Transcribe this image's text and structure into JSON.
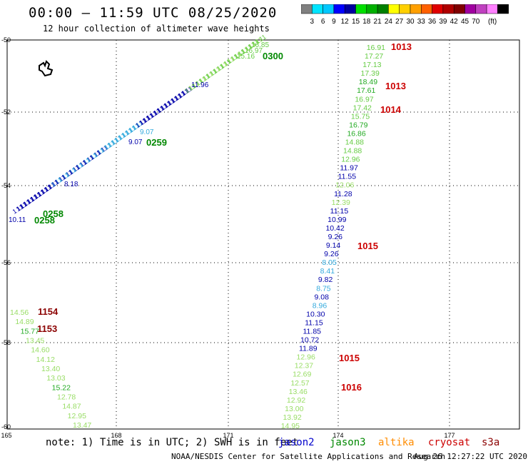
{
  "title": "00:00 — 11:59 UTC 08/25/2020",
  "subtitle": "12 hour collection of altimeter wave heights",
  "colorbar": {
    "colors": [
      "#808080",
      "#00e5ff",
      "#00c8ff",
      "#0000ff",
      "#0000a0",
      "#00e000",
      "#00b000",
      "#008000",
      "#ffff00",
      "#ffd000",
      "#ffa000",
      "#ff6000",
      "#e00000",
      "#b00000",
      "#800000",
      "#a000a0",
      "#c040c0",
      "#ff80ff",
      "#000000"
    ],
    "labels": [
      "3",
      "6",
      "9",
      "12",
      "15",
      "18",
      "21",
      "24",
      "27",
      "30",
      "33",
      "36",
      "39",
      "42",
      "45",
      "70",
      "(ft)"
    ]
  },
  "axes": {
    "lon_labels": [
      "165",
      "168",
      "171",
      "174",
      "177"
    ],
    "lat_labels": [
      "-50",
      "-52",
      "-54",
      "-56",
      "-58",
      "-60"
    ]
  },
  "note": {
    "text": "note: 1) Time is in UTC; 2) SWH is in feet",
    "sats": [
      {
        "name": "jason2",
        "color": "#0000cc"
      },
      {
        "name": "jason3",
        "color": "#008800"
      },
      {
        "name": "altika",
        "color": "#ff8c00"
      },
      {
        "name": "cryosat",
        "color": "#cc0000"
      },
      {
        "name": "s3a",
        "color": "#8b0000"
      }
    ]
  },
  "footer": "NOAA/NESDIS Center for Satellite Applications and Research",
  "footer_date": "Aug 26 12:27:22 UTC 2020",
  "tracks": {
    "right": [
      {
        "v": "16.91",
        "c": "#66cc44"
      },
      {
        "v": "17.27",
        "c": "#66cc44"
      },
      {
        "v": "17.13",
        "c": "#66cc44"
      },
      {
        "v": "17.39",
        "c": "#66cc44"
      },
      {
        "v": "18.49",
        "c": "#22aa22"
      },
      {
        "v": "17.61",
        "c": "#22aa22"
      },
      {
        "v": "16.97",
        "c": "#66cc44"
      },
      {
        "v": "17.42",
        "c": "#66cc44"
      },
      {
        "v": "15.75",
        "c": "#66cc44"
      },
      {
        "v": "16.79",
        "c": "#22aa22"
      },
      {
        "v": "16.86",
        "c": "#22aa22"
      },
      {
        "v": "14.88",
        "c": "#66cc44"
      },
      {
        "v": "14.88",
        "c": "#66cc44"
      },
      {
        "v": "12.96",
        "c": "#66cc44"
      },
      {
        "v": "11.97",
        "c": "#0000aa"
      },
      {
        "v": "11.55",
        "c": "#0000aa"
      },
      {
        "v": "12.06",
        "c": "#99dd66"
      },
      {
        "v": "11.28",
        "c": "#0000aa"
      },
      {
        "v": "12.39",
        "c": "#99dd66"
      },
      {
        "v": "11.15",
        "c": "#0000aa"
      },
      {
        "v": "10.99",
        "c": "#0000aa"
      },
      {
        "v": "10.42",
        "c": "#0000aa"
      },
      {
        "v": "9.26",
        "c": "#0000aa"
      },
      {
        "v": "9.14",
        "c": "#0000aa"
      },
      {
        "v": "9.26",
        "c": "#0000aa"
      },
      {
        "v": "8.05",
        "c": "#33aadd"
      },
      {
        "v": "8.41",
        "c": "#33aadd"
      },
      {
        "v": "9.82",
        "c": "#0000aa"
      },
      {
        "v": "8.75",
        "c": "#33aadd"
      },
      {
        "v": "9.08",
        "c": "#0000aa"
      },
      {
        "v": "8.96",
        "c": "#33aadd"
      },
      {
        "v": "10.30",
        "c": "#0000aa"
      },
      {
        "v": "11.15",
        "c": "#0000aa"
      },
      {
        "v": "11.85",
        "c": "#0000aa"
      },
      {
        "v": "10.72",
        "c": "#0000aa"
      },
      {
        "v": "11.89",
        "c": "#0000aa"
      },
      {
        "v": "12.96",
        "c": "#99dd66"
      },
      {
        "v": "12.37",
        "c": "#99dd66"
      },
      {
        "v": "12.69",
        "c": "#99dd66"
      },
      {
        "v": "12.57",
        "c": "#99dd66"
      },
      {
        "v": "13.46",
        "c": "#99dd66"
      },
      {
        "v": "12.92",
        "c": "#99dd66"
      },
      {
        "v": "13.00",
        "c": "#99dd66"
      },
      {
        "v": "13.92",
        "c": "#99dd66"
      },
      {
        "v": "14.95",
        "c": "#99dd66"
      }
    ],
    "left": [
      {
        "v": "14.56",
        "c": "#99dd66"
      },
      {
        "v": "14.89",
        "c": "#99dd66"
      },
      {
        "v": "15.77",
        "c": "#22aa22"
      },
      {
        "v": "13.45",
        "c": "#99dd66"
      },
      {
        "v": "14.60",
        "c": "#99dd66"
      },
      {
        "v": "14.12",
        "c": "#99dd66"
      },
      {
        "v": "13.40",
        "c": "#99dd66"
      },
      {
        "v": "13.03",
        "c": "#99dd66"
      },
      {
        "v": "15.22",
        "c": "#22aa22"
      },
      {
        "v": "12.78",
        "c": "#99dd66"
      },
      {
        "v": "14.87",
        "c": "#99dd66"
      },
      {
        "v": "12.95",
        "c": "#99dd66"
      },
      {
        "v": "13.47",
        "c": "#99dd66"
      }
    ],
    "diagonal_labels": [
      {
        "v": "16.85",
        "c": "#66cc44"
      },
      {
        "v": "16.97",
        "c": "#66cc44"
      },
      {
        "v": "15.16",
        "c": "#66cc44"
      },
      {
        "v": "11.96",
        "c": "#0000aa"
      },
      {
        "v": "9.07",
        "c": "#33aadd"
      },
      {
        "v": "9.07",
        "c": "#0000aa"
      },
      {
        "v": "8.18",
        "c": "#0000aa"
      },
      {
        "v": "10.11",
        "c": "#0000aa"
      }
    ]
  },
  "times": [
    {
      "t": "1013",
      "c": "#cc0000"
    },
    {
      "t": "1013",
      "c": "#cc0000"
    },
    {
      "t": "1014",
      "c": "#cc0000"
    },
    {
      "t": "1015",
      "c": "#cc0000"
    },
    {
      "t": "1015",
      "c": "#cc0000"
    },
    {
      "t": "1016",
      "c": "#cc0000"
    },
    {
      "t": "0300",
      "c": "#008800"
    },
    {
      "t": "0259",
      "c": "#008800"
    },
    {
      "t": "0258",
      "c": "#008800"
    },
    {
      "t": "0258",
      "c": "#008800"
    },
    {
      "t": "1154",
      "c": "#8b0000"
    },
    {
      "t": "1153",
      "c": "#8b0000"
    }
  ]
}
